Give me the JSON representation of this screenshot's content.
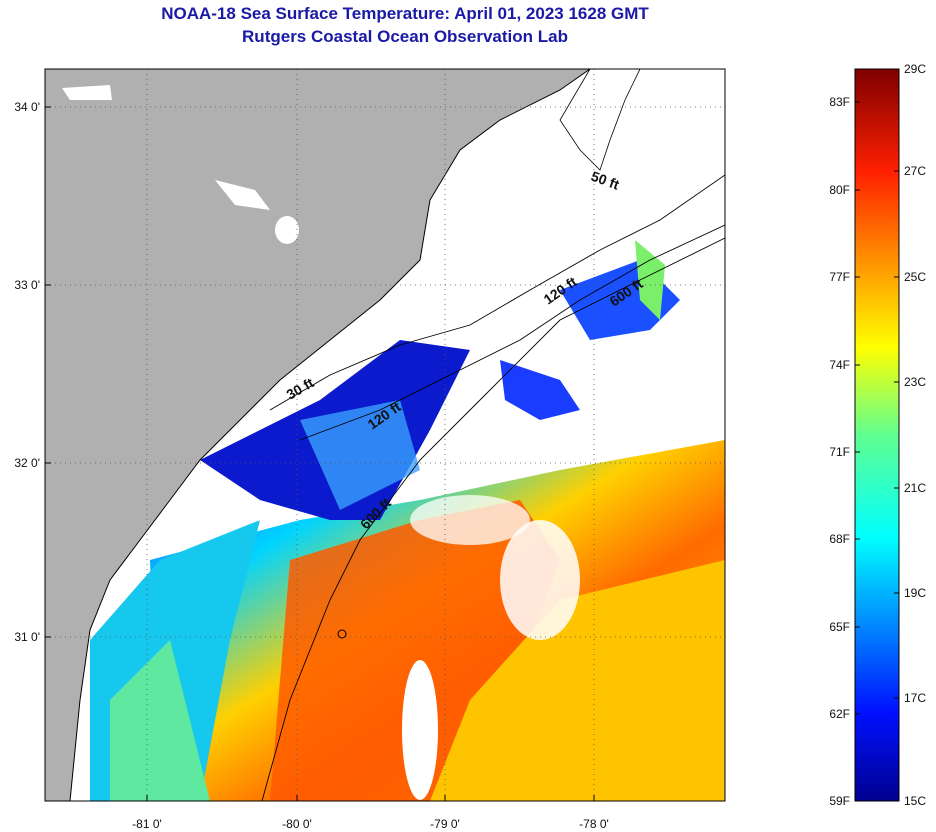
{
  "title": {
    "line1": "NOAA-18 Sea Surface Temperature:  April 01, 2023 1628 GMT",
    "line2": "Rutgers Coastal Ocean Observation Lab"
  },
  "map": {
    "lon_ticks": [
      "-81 0'",
      "-80 0'",
      "-79 0'",
      "-78 0'"
    ],
    "lat_ticks": [
      "34 0'",
      "33 0'",
      "32 0'",
      "31 0'"
    ],
    "contours": [
      "30 ft",
      "120 ft",
      "600 ft",
      "50 ft",
      "120 ft",
      "600 ft"
    ],
    "colors": {
      "land": "#b0b0b0",
      "cloud": "#ffffff"
    }
  },
  "colorbar": {
    "fahrenheit": [
      "83F",
      "80F",
      "77F",
      "74F",
      "71F",
      "68F",
      "65F",
      "62F",
      "59F"
    ],
    "celsius": [
      "29C",
      "27C",
      "25C",
      "23C",
      "21C",
      "19C",
      "17C",
      "15C"
    ]
  }
}
